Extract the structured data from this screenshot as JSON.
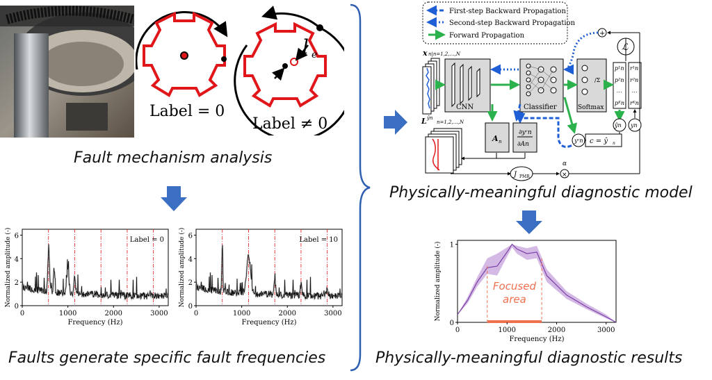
{
  "captions": {
    "mechanism": "Fault mechanism analysis",
    "frequencies": "Faults generate specific fault frequencies",
    "model": "Physically-meaningful diagnostic model",
    "results": "Physically-meaningful diagnostic results"
  },
  "gears": {
    "label_zero": "Label = 0",
    "label_nonzero": "Label ≠ 0",
    "ecc_symbol": "l",
    "ecc_subscript": "e"
  },
  "spectrum_charts": {
    "ylabel": "Normalized amplitude (-)",
    "xlabel": "Frequency (Hz)",
    "xticks": [
      "0",
      "1000",
      "2000",
      "3000"
    ],
    "yticks": [
      "0",
      "2",
      "4",
      "6"
    ],
    "left_label": "Label = 0",
    "right_label": "Label = 10"
  },
  "model": {
    "legend": [
      {
        "text": "First-step Backward Propagation",
        "color": "#1f5fd6",
        "style": "dashed"
      },
      {
        "text": "Second-step Backward Propagation",
        "color": "#1f5fd6",
        "style": "dotted"
      },
      {
        "text": "Forward Propagation",
        "color": "#2bb24c",
        "style": "solid"
      }
    ],
    "blocks": {
      "cnn": "CNN",
      "classifier": "Classifier",
      "softmax": "Softmax",
      "loss": "ℒ",
      "a_n": "A",
      "a_sub": "n",
      "c_eq": "c = ŷ",
      "c_sub": "n",
      "j_pmr": "J",
      "j_sub": "PMR",
      "alpha": "α",
      "input_x": "x",
      "input_sub": "n|n=1,2,…,N",
      "l_map": "L",
      "l_sup": "ŷn",
      "l_sub": "n=1,2,…,N",
      "y_hat": "ŷn",
      "y_n": "yn",
      "y_c": "yᶜn",
      "p_col": [
        "p¹n",
        "p²n",
        "⋯",
        "pᴷn"
      ],
      "r_col": [
        "r¹n",
        "r²n",
        "⋯",
        "rᴷn"
      ]
    }
  },
  "chart_data": {
    "type": "area",
    "xlabel": "Frequency (Hz)",
    "ylabel": "Normalized amplitude (-)",
    "xlim": [
      0,
      3200
    ],
    "ylim": [
      0,
      1.05
    ],
    "xticks": [
      0,
      1000,
      2000,
      3000
    ],
    "yticks": [
      0,
      1
    ],
    "x": [
      0,
      200,
      400,
      600,
      800,
      1000,
      1100,
      1200,
      1400,
      1600,
      1800,
      2200,
      2600,
      3000,
      3200
    ],
    "series": [
      {
        "values": [
          0.1,
          0.28,
          0.52,
          0.7,
          0.72,
          0.9,
          1.0,
          0.94,
          0.88,
          0.9,
          0.6,
          0.35,
          0.2,
          0.07,
          0.0
        ]
      }
    ],
    "band_upper": [
      0.1,
      0.32,
      0.58,
      0.82,
      0.88,
      0.96,
      1.0,
      0.98,
      0.95,
      0.98,
      0.68,
      0.4,
      0.24,
      0.1,
      0.0
    ],
    "band_lower": [
      0.1,
      0.24,
      0.46,
      0.62,
      0.6,
      0.84,
      0.96,
      0.88,
      0.8,
      0.82,
      0.52,
      0.3,
      0.17,
      0.05,
      0.0
    ],
    "focused_area": {
      "label_line1": "Focused",
      "label_line2": "area",
      "x_range": [
        600,
        1700
      ]
    }
  }
}
